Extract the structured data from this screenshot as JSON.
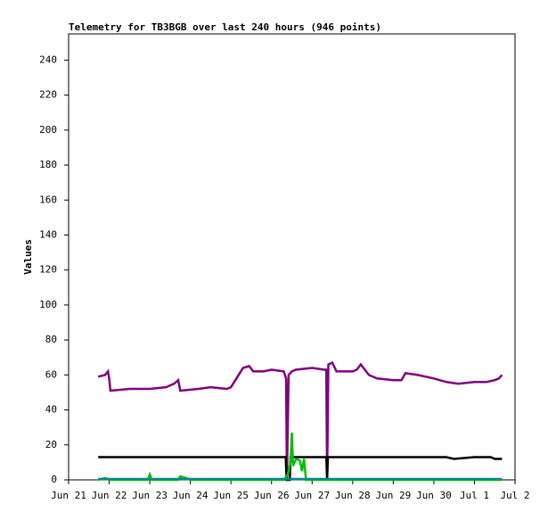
{
  "chart_data": {
    "type": "line",
    "title": "Telemetry for TB3BGB over last 240 hours (946 points)",
    "y_label": "Values",
    "xlim": [
      0,
      11
    ],
    "ylim": [
      0,
      255
    ],
    "xticks": [
      {
        "value": 0,
        "label": "Jun 21"
      },
      {
        "value": 1,
        "label": "Jun 22"
      },
      {
        "value": 2,
        "label": "Jun 23"
      },
      {
        "value": 3,
        "label": "Jun 24"
      },
      {
        "value": 4,
        "label": "Jun 25"
      },
      {
        "value": 5,
        "label": "Jun 26"
      },
      {
        "value": 6,
        "label": "Jun 27"
      },
      {
        "value": 7,
        "label": "Jun 28"
      },
      {
        "value": 8,
        "label": "Jun 29"
      },
      {
        "value": 9,
        "label": "Jun 30"
      },
      {
        "value": 10,
        "label": "Jul 1"
      },
      {
        "value": 11,
        "label": "Jul 2"
      }
    ],
    "yticks": [
      0,
      20,
      40,
      60,
      80,
      100,
      120,
      140,
      160,
      180,
      200,
      220,
      240
    ],
    "series": [
      {
        "color": "#800080",
        "x": [
          0.73,
          0.9,
          0.97,
          1.0,
          1.03,
          1.5,
          2.0,
          2.4,
          2.6,
          2.7,
          2.75,
          3.2,
          3.5,
          3.9,
          4.0,
          4.3,
          4.45,
          4.55,
          4.8,
          5.0,
          5.3,
          5.36,
          5.38,
          5.42,
          5.5,
          5.6,
          6.0,
          6.3,
          6.35,
          6.37,
          6.4,
          6.5,
          6.6,
          7.0,
          7.1,
          7.2,
          7.4,
          7.6,
          8.0,
          8.2,
          8.3,
          8.6,
          9.0,
          9.3,
          9.6,
          10.0,
          10.3,
          10.5,
          10.6,
          10.68
        ],
        "values": [
          59,
          60,
          62,
          58,
          51,
          52,
          52,
          53,
          55,
          57,
          51,
          52,
          53,
          52,
          53,
          64,
          65,
          62,
          62,
          63,
          62,
          58,
          0,
          60,
          62,
          63,
          64,
          63,
          63,
          0,
          66,
          67,
          62,
          62,
          63,
          66,
          60,
          58,
          57,
          57,
          61,
          60,
          58,
          56,
          55,
          56,
          56,
          57,
          58,
          60
        ]
      },
      {
        "color": "#000000",
        "x": [
          0.73,
          1.2,
          5.35,
          5.37,
          5.45,
          5.47,
          6.35,
          6.37,
          6.39,
          8.5,
          9.3,
          9.5,
          10.0,
          10.4,
          10.5,
          10.68
        ],
        "values": [
          13,
          13,
          13,
          0,
          0,
          13,
          13,
          0,
          13,
          13,
          13,
          12,
          13,
          13,
          12,
          12
        ]
      },
      {
        "color": "#00c000",
        "x": [
          0.73,
          0.9,
          1.0,
          1.95,
          2.0,
          2.05,
          2.7,
          2.75,
          2.9,
          3.0,
          5.3,
          5.4,
          5.47,
          5.5,
          5.53,
          5.6,
          5.7,
          5.75,
          5.8,
          5.85,
          10.68
        ],
        "values": [
          0,
          1,
          0,
          0,
          3,
          0,
          0,
          2,
          1,
          0,
          0,
          3,
          10,
          27,
          8,
          12,
          11,
          5,
          12,
          0,
          0
        ]
      },
      {
        "color": "#008b8b",
        "x": [
          0.73,
          3,
          5,
          7,
          9,
          10.68
        ],
        "values": [
          0.5,
          0.5,
          0.5,
          0.5,
          0.5,
          0.5
        ]
      }
    ]
  }
}
